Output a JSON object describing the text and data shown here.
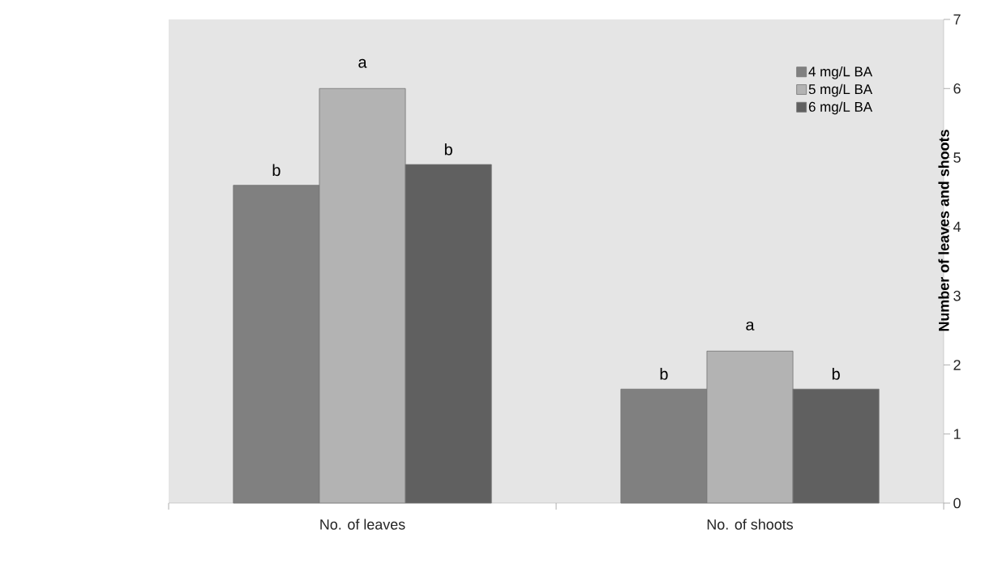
{
  "chart_data": {
    "type": "bar",
    "ylabel": "Number of leaves and shoots",
    "categories": [
      "No. of leaves",
      "No. of shoots"
    ],
    "series": [
      {
        "name": "4 mg/L BA",
        "color": "#808080",
        "values": [
          4.6,
          1.65
        ]
      },
      {
        "name": "5 mg/L BA",
        "color": "#b3b3b3",
        "values": [
          6.0,
          2.2
        ]
      },
      {
        "name": "6 mg/L BA",
        "color": "#606060",
        "values": [
          4.9,
          1.65
        ]
      }
    ],
    "ylim": [
      0,
      7
    ],
    "yticks": [
      0,
      1,
      2,
      3,
      4,
      5,
      6,
      7
    ],
    "grid": false,
    "legend": "top right",
    "annotations": [
      "b",
      "a",
      "b",
      "b",
      "a",
      "b"
    ]
  }
}
